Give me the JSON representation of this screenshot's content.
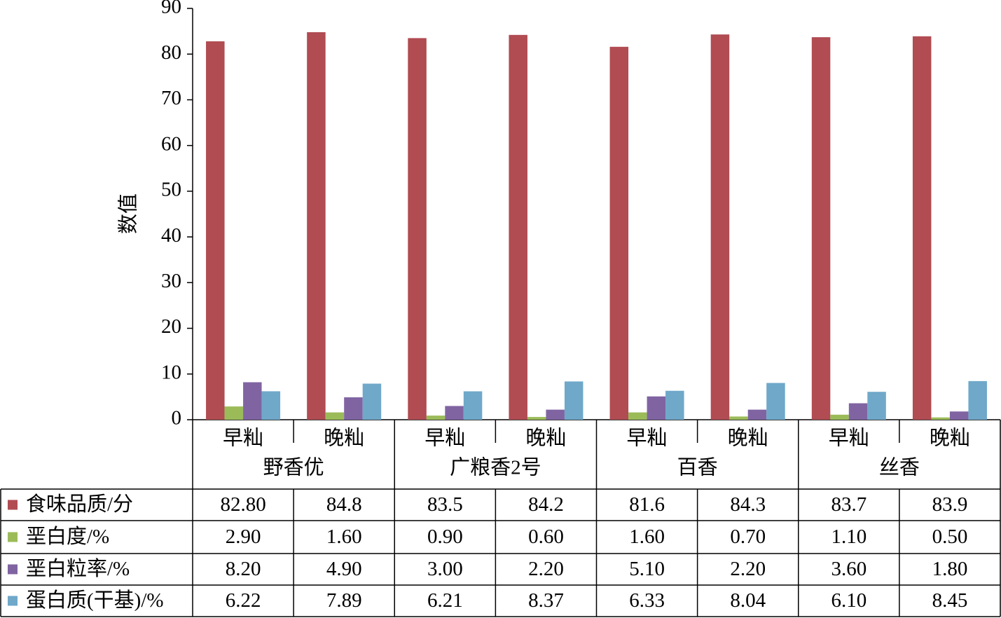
{
  "chart_data": {
    "type": "bar",
    "y_label": "数值",
    "categories": [
      "早籼",
      "晚籼",
      "早籼",
      "晚籼",
      "早籼",
      "晚籼",
      "早籼",
      "晚籼"
    ],
    "groups": [
      "野香优",
      "广粮香2号",
      "百香",
      "丝香"
    ],
    "series": [
      {
        "name": "食味品质/分",
        "color": "#b04c52",
        "values": [
          82.8,
          84.8,
          83.5,
          84.2,
          81.6,
          84.3,
          83.7,
          83.9
        ],
        "value_labels": [
          "82.80",
          "84.8",
          "83.5",
          "84.2",
          "81.6",
          "84.3",
          "83.7",
          "83.9"
        ]
      },
      {
        "name": "垩白度/%",
        "color": "#9bbb59",
        "values": [
          2.9,
          1.6,
          0.9,
          0.6,
          1.6,
          0.7,
          1.1,
          0.5
        ],
        "value_labels": [
          "2.90",
          "1.60",
          "0.90",
          "0.60",
          "1.60",
          "0.70",
          "1.10",
          "0.50"
        ]
      },
      {
        "name": "垩白粒率/%",
        "color": "#8064a2",
        "values": [
          8.2,
          4.9,
          3.0,
          2.2,
          5.1,
          2.2,
          3.6,
          1.8
        ],
        "value_labels": [
          "8.20",
          "4.90",
          "3.00",
          "2.20",
          "5.10",
          "2.20",
          "3.60",
          "1.80"
        ]
      },
      {
        "name": "蛋白质(干基)/%",
        "color": "#6fa8c9",
        "values": [
          6.22,
          7.89,
          6.21,
          8.37,
          6.33,
          8.04,
          6.1,
          8.45
        ],
        "value_labels": [
          "6.22",
          "7.89",
          "6.21",
          "8.37",
          "6.33",
          "8.04",
          "6.10",
          "8.45"
        ]
      }
    ],
    "ylim": [
      0,
      90
    ],
    "yticks": [
      0,
      10,
      20,
      30,
      40,
      50,
      60,
      70,
      80,
      90
    ]
  }
}
